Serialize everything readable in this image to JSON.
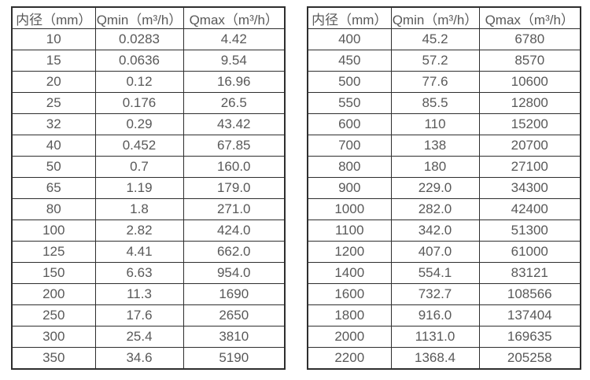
{
  "tables": [
    {
      "name": "flow-rate-table-small-diameters",
      "headers": [
        "内径（mm）",
        "Qmin（m³/h）",
        "Qmax（m³/h）"
      ],
      "rows": [
        [
          "10",
          "0.0283",
          "4.42"
        ],
        [
          "15",
          "0.0636",
          "9.54"
        ],
        [
          "20",
          "0.12",
          "16.96"
        ],
        [
          "25",
          "0.176",
          "26.5"
        ],
        [
          "32",
          "0.29",
          "43.42"
        ],
        [
          "40",
          "0.452",
          "67.85"
        ],
        [
          "50",
          "0.7",
          "160.0"
        ],
        [
          "65",
          "1.19",
          "179.0"
        ],
        [
          "80",
          "1.8",
          "271.0"
        ],
        [
          "100",
          "2.82",
          "424.0"
        ],
        [
          "125",
          "4.41",
          "662.0"
        ],
        [
          "150",
          "6.63",
          "954.0"
        ],
        [
          "200",
          "11.3",
          "1690"
        ],
        [
          "250",
          "17.6",
          "2650"
        ],
        [
          "300",
          "25.4",
          "3810"
        ],
        [
          "350",
          "34.6",
          "5190"
        ]
      ]
    },
    {
      "name": "flow-rate-table-large-diameters",
      "headers": [
        "内径（mm）",
        "Qmin（m³/h）",
        "Qmax（m³/h）"
      ],
      "rows": [
        [
          "400",
          "45.2",
          "6780"
        ],
        [
          "450",
          "57.2",
          "8570"
        ],
        [
          "500",
          "77.6",
          "10600"
        ],
        [
          "550",
          "85.5",
          "12800"
        ],
        [
          "600",
          "110",
          "15200"
        ],
        [
          "700",
          "138",
          "20700"
        ],
        [
          "800",
          "180",
          "27100"
        ],
        [
          "900",
          "229.0",
          "34300"
        ],
        [
          "1000",
          "282.0",
          "42400"
        ],
        [
          "1100",
          "342.0",
          "51300"
        ],
        [
          "1200",
          "407.0",
          "61000"
        ],
        [
          "1400",
          "554.1",
          "83121"
        ],
        [
          "1600",
          "732.7",
          "108566"
        ],
        [
          "1800",
          "916.0",
          "137404"
        ],
        [
          "2000",
          "1131.0",
          "169635"
        ],
        [
          "2200",
          "1368.4",
          "205258"
        ]
      ]
    }
  ],
  "colors": {
    "text": "#595959",
    "border": "#2e2e2e",
    "background": "#ffffff"
  }
}
